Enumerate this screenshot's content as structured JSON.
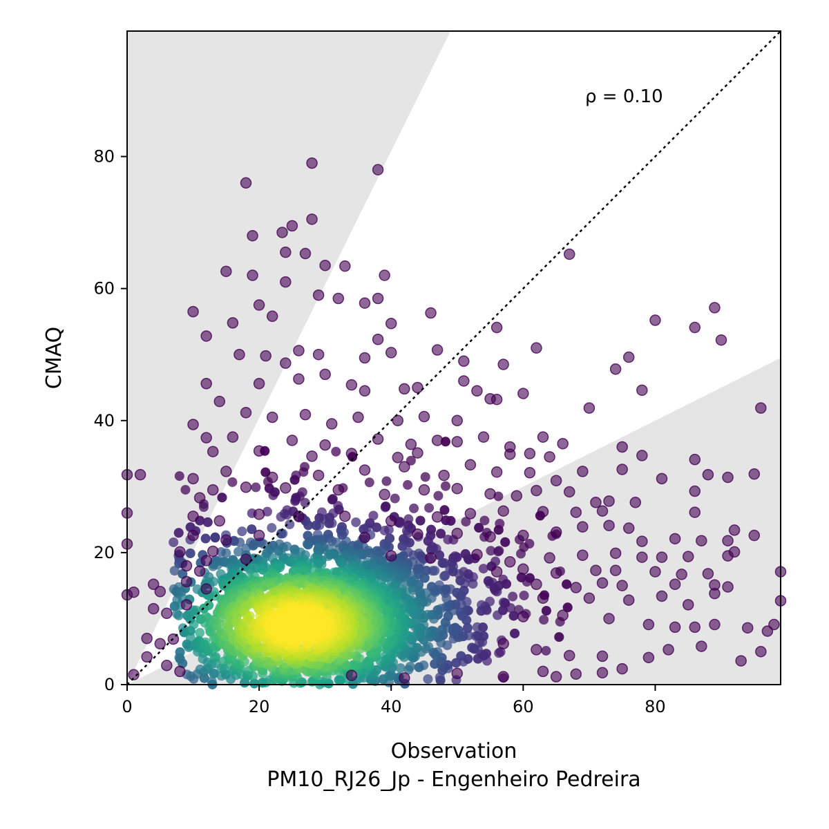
{
  "chart_data": {
    "type": "scatter",
    "title": "",
    "xlabel": "Observation",
    "xlabel_line2": "PM10_RJ26_Jp - Engenheiro Pedreira",
    "ylabel": "CMAQ",
    "xlim": [
      0,
      99
    ],
    "ylim": [
      0,
      99
    ],
    "xticks": [
      0,
      20,
      40,
      60,
      80
    ],
    "yticks": [
      0,
      20,
      40,
      60,
      80
    ],
    "grid": false,
    "annotation": "ρ = 0.10",
    "reference_line": {
      "style": "dotted",
      "from": [
        0,
        0
      ],
      "to": [
        99,
        99
      ]
    },
    "shaded_regions": [
      {
        "color": "#e5e5e5",
        "polygon": [
          [
            0,
            0
          ],
          [
            49,
            99
          ],
          [
            0,
            99
          ]
        ]
      },
      {
        "color": "#e5e5e5",
        "polygon": [
          [
            0,
            0
          ],
          [
            99,
            0
          ],
          [
            99,
            49.5
          ]
        ]
      }
    ],
    "colormap": "viridis",
    "density_center": [
      26,
      9
    ],
    "points": [
      [
        0,
        31.8
      ],
      [
        2,
        31.8
      ],
      [
        0,
        26
      ],
      [
        0,
        21.3
      ],
      [
        1,
        14
      ],
      [
        0,
        13.6
      ],
      [
        1,
        1.5
      ],
      [
        18,
        76
      ],
      [
        28,
        79
      ],
      [
        38,
        78
      ],
      [
        19,
        68
      ],
      [
        23.5,
        68.5
      ],
      [
        25,
        69.5
      ],
      [
        28,
        70.5
      ],
      [
        24,
        65.5
      ],
      [
        27,
        65.3
      ],
      [
        67,
        65.2
      ],
      [
        15,
        62.6
      ],
      [
        19,
        62
      ],
      [
        24,
        61
      ],
      [
        30,
        63.5
      ],
      [
        33,
        63.4
      ],
      [
        39,
        62
      ],
      [
        10,
        56.5
      ],
      [
        16,
        54.8
      ],
      [
        20,
        57.5
      ],
      [
        22,
        55.8
      ],
      [
        29,
        59
      ],
      [
        32,
        58.5
      ],
      [
        36,
        57.8
      ],
      [
        38,
        58.5
      ],
      [
        46,
        56.3
      ],
      [
        40,
        54.7
      ],
      [
        56,
        54.1
      ],
      [
        80,
        55.2
      ],
      [
        86,
        54.1
      ],
      [
        89,
        57.1
      ],
      [
        90,
        52.2
      ],
      [
        12,
        52.8
      ],
      [
        17,
        50
      ],
      [
        21,
        49.8
      ],
      [
        24,
        48.7
      ],
      [
        26,
        50.6
      ],
      [
        29,
        50
      ],
      [
        36,
        49.5
      ],
      [
        38,
        52.3
      ],
      [
        40,
        50.3
      ],
      [
        47,
        50.7
      ],
      [
        51,
        49
      ],
      [
        57,
        48.5
      ],
      [
        62,
        51
      ],
      [
        74,
        47.8
      ],
      [
        76,
        49.6
      ],
      [
        12,
        45.6
      ],
      [
        20,
        45.6
      ],
      [
        26,
        46.3
      ],
      [
        30,
        47
      ],
      [
        34,
        45.4
      ],
      [
        36,
        44.5
      ],
      [
        42,
        44.8
      ],
      [
        44,
        45
      ],
      [
        51,
        46
      ],
      [
        53,
        44.5
      ],
      [
        55,
        43.3
      ],
      [
        56,
        43.2
      ],
      [
        60,
        44.1
      ],
      [
        78,
        44.6
      ],
      [
        70,
        41.9
      ],
      [
        96,
        41.9
      ],
      [
        14,
        42.9
      ],
      [
        18,
        41.2
      ],
      [
        22,
        40.5
      ],
      [
        27,
        40.9
      ],
      [
        31,
        39.5
      ],
      [
        35,
        40.5
      ],
      [
        41,
        40
      ],
      [
        45,
        40.6
      ],
      [
        50,
        40
      ],
      [
        10,
        39.4
      ],
      [
        12,
        37.4
      ],
      [
        16,
        37.5
      ],
      [
        25,
        37
      ],
      [
        30,
        36.3
      ],
      [
        38,
        37.2
      ],
      [
        43,
        36.4
      ],
      [
        47,
        37
      ],
      [
        50,
        36.8
      ],
      [
        54,
        37.5
      ],
      [
        58,
        36
      ],
      [
        63,
        37.5
      ],
      [
        66,
        36.5
      ],
      [
        75,
        36
      ],
      [
        13,
        35.3
      ],
      [
        20,
        35.4
      ],
      [
        28,
        34.6
      ],
      [
        34,
        35
      ],
      [
        41,
        34.4
      ],
      [
        44,
        35.1
      ],
      [
        58,
        34.9
      ],
      [
        61,
        35
      ],
      [
        64,
        34.5
      ],
      [
        86,
        34.1
      ],
      [
        15,
        32.3
      ],
      [
        22,
        31.4
      ],
      [
        29,
        31.7
      ],
      [
        36,
        32.5
      ],
      [
        42,
        33
      ],
      [
        48,
        31.7
      ],
      [
        52,
        33.3
      ],
      [
        56,
        32.2
      ],
      [
        61,
        32.1
      ],
      [
        65,
        30.9
      ],
      [
        69,
        32.3
      ],
      [
        75,
        32.6
      ],
      [
        78,
        34.7
      ],
      [
        81,
        31.2
      ],
      [
        88,
        31.8
      ],
      [
        91,
        31.4
      ],
      [
        95,
        31.9
      ],
      [
        10,
        31.2
      ],
      [
        11,
        28.3
      ],
      [
        13,
        29.5
      ],
      [
        18,
        29.9
      ],
      [
        24,
        29.8
      ],
      [
        32,
        29.5
      ],
      [
        39,
        28.8
      ],
      [
        45,
        29.5
      ],
      [
        50,
        29.7
      ],
      [
        55,
        28.9
      ],
      [
        59,
        28.6
      ],
      [
        62,
        29.4
      ],
      [
        67,
        29.2
      ],
      [
        71,
        27.6
      ],
      [
        73,
        27.8
      ],
      [
        77,
        27.6
      ],
      [
        86,
        29.3
      ],
      [
        10,
        25.5
      ],
      [
        14,
        24.8
      ],
      [
        20,
        25.8
      ],
      [
        26,
        25.5
      ],
      [
        33,
        25.5
      ],
      [
        40,
        24.8
      ],
      [
        47,
        25.4
      ],
      [
        52,
        25.9
      ],
      [
        57,
        26.3
      ],
      [
        63,
        26.2
      ],
      [
        68,
        26.1
      ],
      [
        72,
        26.3
      ],
      [
        86,
        26.1
      ],
      [
        10,
        22.6
      ],
      [
        15,
        21.9
      ],
      [
        20,
        22.6
      ],
      [
        36,
        22.3
      ],
      [
        44,
        22.8
      ],
      [
        50,
        22.9
      ],
      [
        55,
        22.4
      ],
      [
        60,
        22.6
      ],
      [
        65,
        23.1
      ],
      [
        69,
        23.9
      ],
      [
        73,
        24.1
      ],
      [
        76,
        23.7
      ],
      [
        78,
        21.7
      ],
      [
        83,
        22.1
      ],
      [
        87,
        21.8
      ],
      [
        91,
        21.8
      ],
      [
        92,
        23.4
      ],
      [
        95,
        22.6
      ],
      [
        13,
        20.2
      ],
      [
        8,
        20.1
      ],
      [
        9,
        18
      ],
      [
        12,
        18.8
      ],
      [
        18,
        19
      ],
      [
        40,
        19.5
      ],
      [
        46,
        19.2
      ],
      [
        53,
        19.7
      ],
      [
        58,
        18.6
      ],
      [
        64,
        19.2
      ],
      [
        69,
        19.6
      ],
      [
        74,
        19.9
      ],
      [
        78,
        19.3
      ],
      [
        81,
        19.3
      ],
      [
        85,
        19.4
      ],
      [
        91,
        19.5
      ],
      [
        92,
        20.1
      ],
      [
        11,
        17.2
      ],
      [
        56,
        17.1
      ],
      [
        60,
        17.5
      ],
      [
        65,
        16.9
      ],
      [
        71,
        17.3
      ],
      [
        74,
        17.3
      ],
      [
        80,
        17.1
      ],
      [
        84,
        16.7
      ],
      [
        88,
        16.8
      ],
      [
        99,
        17.1
      ],
      [
        4,
        15.2
      ],
      [
        5,
        14.1
      ],
      [
        9,
        15.6
      ],
      [
        12,
        14.5
      ],
      [
        62,
        15.2
      ],
      [
        68,
        14.7
      ],
      [
        72,
        15.4
      ],
      [
        75,
        15
      ],
      [
        83,
        15.2
      ],
      [
        89,
        15.1
      ],
      [
        91,
        14.8
      ],
      [
        4,
        11.5
      ],
      [
        6,
        10.8
      ],
      [
        9,
        12.1
      ],
      [
        63,
        13.1
      ],
      [
        70,
        13.1
      ],
      [
        76,
        12.8
      ],
      [
        81,
        13.4
      ],
      [
        85,
        12.1
      ],
      [
        89,
        13.8
      ],
      [
        99,
        12.7
      ],
      [
        3,
        7
      ],
      [
        5,
        6.2
      ],
      [
        7,
        6.9
      ],
      [
        60,
        10.3
      ],
      [
        66,
        10.5
      ],
      [
        73,
        10
      ],
      [
        79,
        9.1
      ],
      [
        83,
        8.7
      ],
      [
        86,
        8.7
      ],
      [
        89,
        9.1
      ],
      [
        94,
        8.6
      ],
      [
        97,
        8.1
      ],
      [
        98,
        9.1
      ],
      [
        3,
        4.2
      ],
      [
        6,
        2.9
      ],
      [
        8,
        2
      ],
      [
        57,
        6.2
      ],
      [
        62,
        5.3
      ],
      [
        67,
        4.4
      ],
      [
        72,
        4.3
      ],
      [
        79,
        4.1
      ],
      [
        82,
        5.3
      ],
      [
        87,
        5.8
      ],
      [
        93,
        3.6
      ],
      [
        96,
        5
      ],
      [
        63,
        2
      ],
      [
        68,
        1.6
      ],
      [
        72,
        1.8
      ],
      [
        75,
        2.4
      ],
      [
        57,
        1.2
      ],
      [
        65,
        1.2
      ],
      [
        34,
        1.4
      ],
      [
        42,
        1
      ],
      [
        50,
        1.7
      ]
    ]
  }
}
